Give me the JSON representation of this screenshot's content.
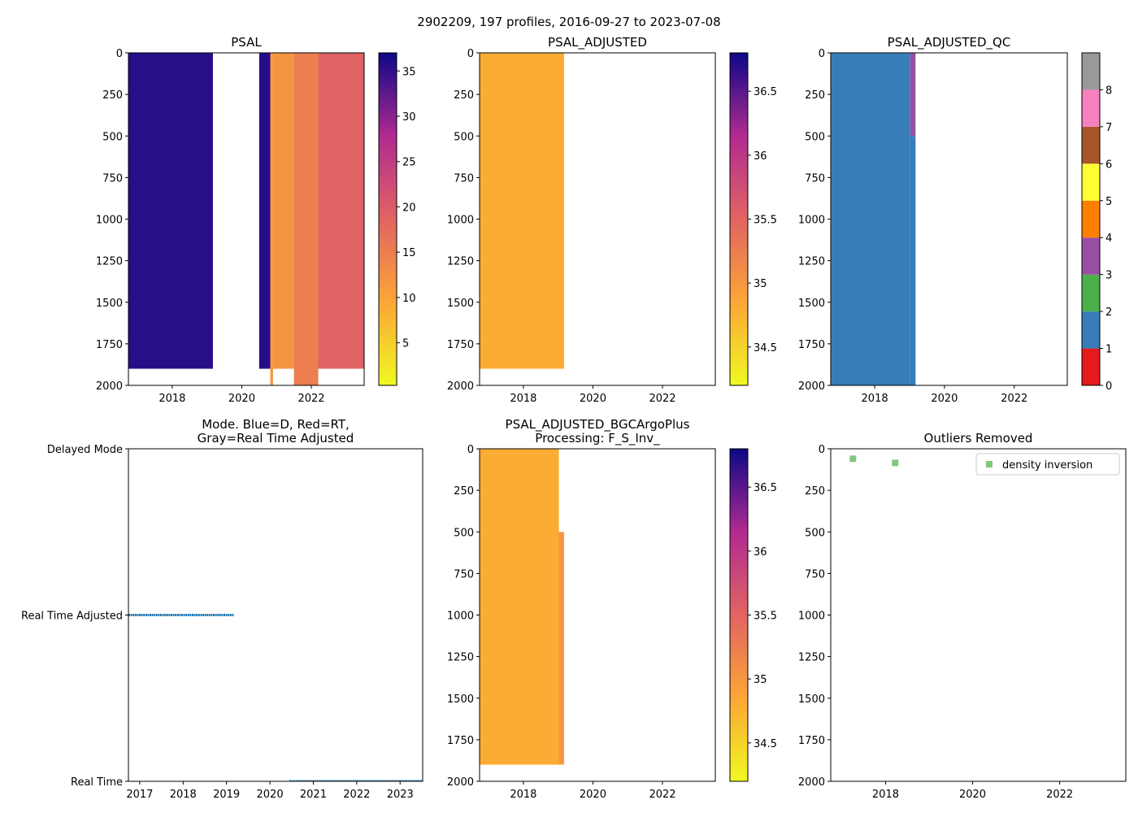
{
  "figure": {
    "title": "2902209, 197 profiles, 2016-09-27 to 2023-07-08"
  },
  "colors": {
    "delayed_mode_blue": "#1f77b4",
    "outlier_green": "#4daf4a",
    "qc_good": "#377eb8",
    "qc_3": "#984ea3",
    "plasma_low": "#f0f921",
    "plasma_mid": "#cc4778",
    "plasma_high": "#0d0887"
  },
  "chart_data": [
    {
      "id": "psal",
      "type": "heatmap",
      "title": "PSAL",
      "xlabel": "",
      "ylabel": "",
      "xlim": [
        2016.74,
        2023.52
      ],
      "ylim": [
        2000,
        0
      ],
      "xticks": [
        2018,
        2020,
        2022
      ],
      "yticks": [
        0,
        250,
        500,
        750,
        1000,
        1250,
        1500,
        1750,
        2000
      ],
      "colorbar": {
        "cmap": "plasma",
        "range": [
          0.3,
          37
        ],
        "ticks": [
          5,
          10,
          15,
          20,
          25,
          30,
          35
        ]
      },
      "blocks": [
        {
          "x": [
            2016.74,
            2019.17
          ],
          "depth": [
            0,
            1900
          ],
          "value": 35.5
        },
        {
          "x": [
            2020.5,
            2020.82
          ],
          "depth": [
            0,
            1900
          ],
          "value": 35.6
        },
        {
          "x": [
            2020.82,
            2020.9
          ],
          "depth": [
            0,
            2000
          ],
          "value": 11
        },
        {
          "x": [
            2020.9,
            2021.5
          ],
          "depth": [
            0,
            1900
          ],
          "value": 12
        },
        {
          "x": [
            2021.5,
            2022.2
          ],
          "depth": [
            0,
            2000
          ],
          "value": 15
        },
        {
          "x": [
            2022.2,
            2023.52
          ],
          "depth": [
            0,
            1900
          ],
          "value": 19
        }
      ]
    },
    {
      "id": "psal_adjusted",
      "type": "heatmap",
      "title": "PSAL_ADJUSTED",
      "xlim": [
        2016.74,
        2023.52
      ],
      "ylim": [
        2000,
        0
      ],
      "xticks": [
        2018,
        2020,
        2022
      ],
      "yticks": [
        0,
        250,
        500,
        750,
        1000,
        1250,
        1500,
        1750,
        2000
      ],
      "colorbar": {
        "cmap": "plasma",
        "range": [
          34.2,
          36.8
        ],
        "ticks": [
          34.5,
          35.0,
          35.5,
          36.0,
          36.5
        ]
      },
      "blocks": [
        {
          "x": [
            2016.74,
            2019.17
          ],
          "depth": [
            0,
            1900
          ],
          "value": 34.8
        }
      ]
    },
    {
      "id": "psal_adjusted_qc",
      "type": "heatmap",
      "title": "PSAL_ADJUSTED_QC",
      "xlim": [
        2016.74,
        2023.52
      ],
      "ylim": [
        2000,
        0
      ],
      "xticks": [
        2018,
        2020,
        2022
      ],
      "yticks": [
        0,
        250,
        500,
        750,
        1000,
        1250,
        1500,
        1750,
        2000
      ],
      "colorbar": {
        "cmap": "qc",
        "range": [
          0,
          8
        ],
        "ticks": [
          0,
          1,
          2,
          3,
          4,
          5,
          6,
          7,
          8
        ],
        "segments": [
          "#e41a1c",
          "#377eb8",
          "#4daf4a",
          "#984ea3",
          "#ff7f00",
          "#ffff33",
          "#a65628",
          "#f781bf",
          "#999999"
        ]
      },
      "blocks": [
        {
          "x": [
            2016.74,
            2019.02
          ],
          "depth": [
            0,
            2000
          ],
          "value": 1
        },
        {
          "x": [
            2019.02,
            2019.17
          ],
          "depth": [
            0,
            500
          ],
          "value": 3
        },
        {
          "x": [
            2019.02,
            2019.17
          ],
          "depth": [
            500,
            2000
          ],
          "value": 1
        }
      ]
    },
    {
      "id": "mode",
      "type": "scatter",
      "title": "Mode. Blue=D, Red=RT,\nGray=Real Time Adjusted",
      "xlim": [
        2016.74,
        2023.52
      ],
      "xticks": [
        2017,
        2018,
        2019,
        2020,
        2021,
        2022,
        2023
      ],
      "ytick_labels": [
        "Delayed Mode",
        "Real Time Adjusted",
        "Real Time"
      ],
      "series": [
        {
          "name": "Real Time Adjusted",
          "level": 1,
          "x_range": [
            2016.74,
            2019.17
          ]
        },
        {
          "name": "Real Time",
          "level": 2,
          "x_range": [
            2020.45,
            2023.52
          ]
        }
      ]
    },
    {
      "id": "psal_adjusted_bgc",
      "type": "heatmap",
      "title": "PSAL_ADJUSTED_BGCArgoPlus\nProcessing: F_S_Inv_",
      "xlim": [
        2016.74,
        2023.52
      ],
      "ylim": [
        2000,
        0
      ],
      "xticks": [
        2018,
        2020,
        2022
      ],
      "yticks": [
        0,
        250,
        500,
        750,
        1000,
        1250,
        1500,
        1750,
        2000
      ],
      "colorbar": {
        "cmap": "plasma",
        "range": [
          34.2,
          36.8
        ],
        "ticks": [
          34.5,
          35.0,
          35.5,
          36.0,
          36.5
        ]
      },
      "blocks": [
        {
          "x": [
            2016.74,
            2019.02
          ],
          "depth": [
            0,
            1900
          ],
          "value": 34.8
        },
        {
          "x": [
            2019.02,
            2019.17
          ],
          "depth": [
            500,
            1900
          ],
          "value": 35.0
        }
      ]
    },
    {
      "id": "outliers",
      "type": "scatter",
      "title": "Outliers Removed",
      "xlim": [
        2016.74,
        2023.52
      ],
      "ylim": [
        2000,
        0
      ],
      "xticks": [
        2018,
        2020,
        2022
      ],
      "yticks": [
        0,
        250,
        500,
        750,
        1000,
        1250,
        1500,
        1750,
        2000
      ],
      "legend": {
        "label": "density inversion",
        "placement": "top-right"
      },
      "points": [
        {
          "x": 2017.25,
          "y": 60
        },
        {
          "x": 2018.22,
          "y": 85
        }
      ]
    }
  ]
}
